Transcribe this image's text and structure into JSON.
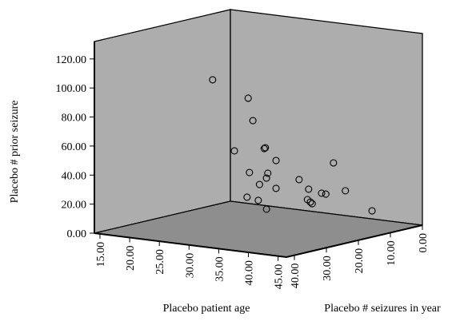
{
  "chart_data": {
    "type": "scatter3d",
    "xlabel": "Placebo patient age",
    "ylabel": "Placebo # prior seizure",
    "zlabel": "Placebo # seizures in year",
    "xlim": [
      14.06,
      46.4
    ],
    "ylim": [
      0,
      132
    ],
    "zlim": [
      0,
      42.5
    ],
    "xticks": [
      {
        "value": 15,
        "label": "15.00"
      },
      {
        "value": 20,
        "label": "20.00"
      },
      {
        "value": 25,
        "label": "25.00"
      },
      {
        "value": 30,
        "label": "30.00"
      },
      {
        "value": 35,
        "label": "35.00"
      },
      {
        "value": 40,
        "label": "40.00"
      },
      {
        "value": 45,
        "label": "45.00"
      }
    ],
    "yticks": [
      {
        "value": 0,
        "label": "0.00"
      },
      {
        "value": 20,
        "label": "20.00"
      },
      {
        "value": 40,
        "label": "40.00"
      },
      {
        "value": 60,
        "label": "60.00"
      },
      {
        "value": 80,
        "label": "80.00"
      },
      {
        "value": 100,
        "label": "100.00"
      },
      {
        "value": 120,
        "label": "120.00"
      }
    ],
    "zticks": [
      {
        "value": 40,
        "label": "40.00"
      },
      {
        "value": 30,
        "label": "30.00"
      },
      {
        "value": 20,
        "label": "20.00"
      },
      {
        "value": 10,
        "label": "10.00"
      },
      {
        "value": 0,
        "label": "0.00"
      }
    ],
    "x": [
      27.1,
      30.8,
      29.3,
      23.9,
      33.5,
      31.4,
      33.2,
      33.3,
      34.1,
      29.3,
      35.0,
      33.2,
      32.9,
      32.5,
      31.6,
      32.5,
      36.4,
      36.0,
      36.2,
      34.4,
      37.0,
      34.0,
      39.3,
      40.3,
      42.5
    ],
    "y": [
      105.7,
      92.7,
      74.3,
      48.5,
      59.4,
      56.7,
      48.8,
      45.0,
      42.7,
      32.5,
      37.6,
      29.6,
      27.8,
      23.2,
      14.5,
      30.9,
      28.5,
      42.0,
      21.2,
      16.4,
      18.8,
      20.1,
      26.6,
      27.2,
      12.3
    ],
    "z": [
      29.75,
      25.5,
      21.25,
      17,
      25.5,
      21.25,
      21.25,
      29.75,
      25.5,
      17,
      29.75,
      21.25,
      29.75,
      25.5,
      21.25,
      12.75,
      17,
      8.5,
      17,
      12.75,
      17,
      8.5,
      17,
      12.75,
      8.5
    ],
    "marker_color": "#000000",
    "wall_color": "#adadad",
    "floor_color": "#8e8e8e"
  }
}
